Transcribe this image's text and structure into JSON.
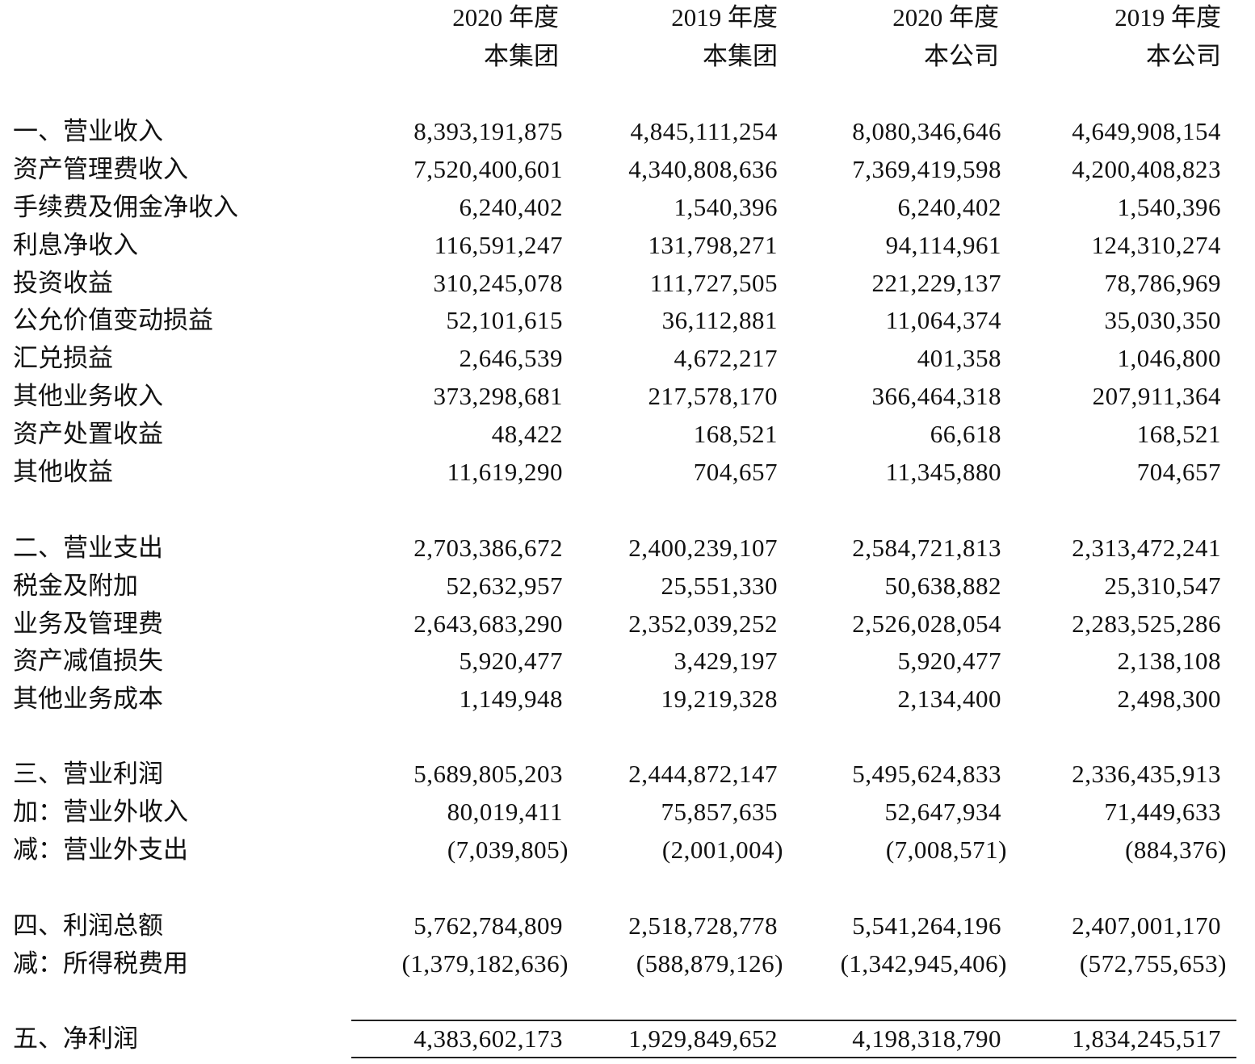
{
  "header": {
    "columns": [
      {
        "year": "2020 年度",
        "entity": "本集团"
      },
      {
        "year": "2019 年度",
        "entity": "本集团"
      },
      {
        "year": "2020 年度",
        "entity": "本公司"
      },
      {
        "year": "2019 年度",
        "entity": "本公司"
      }
    ]
  },
  "rows": [
    {
      "label": "一、营业收入",
      "values": [
        "8,393,191,875",
        "4,845,111,254",
        "8,080,346,646",
        "4,649,908,154"
      ]
    },
    {
      "label": "资产管理费收入",
      "values": [
        "7,520,400,601",
        "4,340,808,636",
        "7,369,419,598",
        "4,200,408,823"
      ]
    },
    {
      "label": "手续费及佣金净收入",
      "values": [
        "6,240,402",
        "1,540,396",
        "6,240,402",
        "1,540,396"
      ]
    },
    {
      "label": "利息净收入",
      "values": [
        "116,591,247",
        "131,798,271",
        "94,114,961",
        "124,310,274"
      ]
    },
    {
      "label": "投资收益",
      "values": [
        "310,245,078",
        "111,727,505",
        "221,229,137",
        "78,786,969"
      ]
    },
    {
      "label": "公允价值变动损益",
      "values": [
        "52,101,615",
        "36,112,881",
        "11,064,374",
        "35,030,350"
      ]
    },
    {
      "label": "汇兑损益",
      "values": [
        "2,646,539",
        "4,672,217",
        "401,358",
        "1,046,800"
      ]
    },
    {
      "label": "其他业务收入",
      "values": [
        "373,298,681",
        "217,578,170",
        "366,464,318",
        "207,911,364"
      ]
    },
    {
      "label": "资产处置收益",
      "values": [
        "48,422",
        "168,521",
        "66,618",
        "168,521"
      ]
    },
    {
      "label": "其他收益",
      "values": [
        "11,619,290",
        "704,657",
        "11,345,880",
        "704,657"
      ]
    },
    {
      "label": "二、营业支出",
      "values": [
        "2,703,386,672",
        "2,400,239,107",
        "2,584,721,813",
        "2,313,472,241"
      ]
    },
    {
      "label": "税金及附加",
      "values": [
        "52,632,957",
        "25,551,330",
        "50,638,882",
        "25,310,547"
      ]
    },
    {
      "label": "业务及管理费",
      "values": [
        "2,643,683,290",
        "2,352,039,252",
        "2,526,028,054",
        "2,283,525,286"
      ]
    },
    {
      "label": "资产减值损失",
      "values": [
        "5,920,477",
        "3,429,197",
        "5,920,477",
        "2,138,108"
      ]
    },
    {
      "label": "其他业务成本",
      "values": [
        "1,149,948",
        "19,219,328",
        "2,134,400",
        "2,498,300"
      ]
    },
    {
      "label": "三、营业利润",
      "values": [
        "5,689,805,203",
        "2,444,872,147",
        "5,495,624,833",
        "2,336,435,913"
      ]
    },
    {
      "label": "加：营业外收入",
      "values": [
        "80,019,411",
        "75,857,635",
        "52,647,934",
        "71,449,633"
      ]
    },
    {
      "label": "减：营业外支出",
      "values": [
        "(7,039,805)",
        "(2,001,004)",
        "(7,008,571)",
        "(884,376)"
      ]
    },
    {
      "label": "四、利润总额",
      "values": [
        "5,762,784,809",
        "2,518,728,778",
        "5,541,264,196",
        "2,407,001,170"
      ]
    },
    {
      "label": "减：所得税费用",
      "values": [
        "(1,379,182,636)",
        "(588,879,126)",
        "(1,342,945,406)",
        "(572,755,653)"
      ]
    },
    {
      "label": "五、净利润",
      "values": [
        "4,383,602,173",
        "1,929,849,652",
        "4,198,318,790",
        "1,834,245,517"
      ]
    }
  ]
}
